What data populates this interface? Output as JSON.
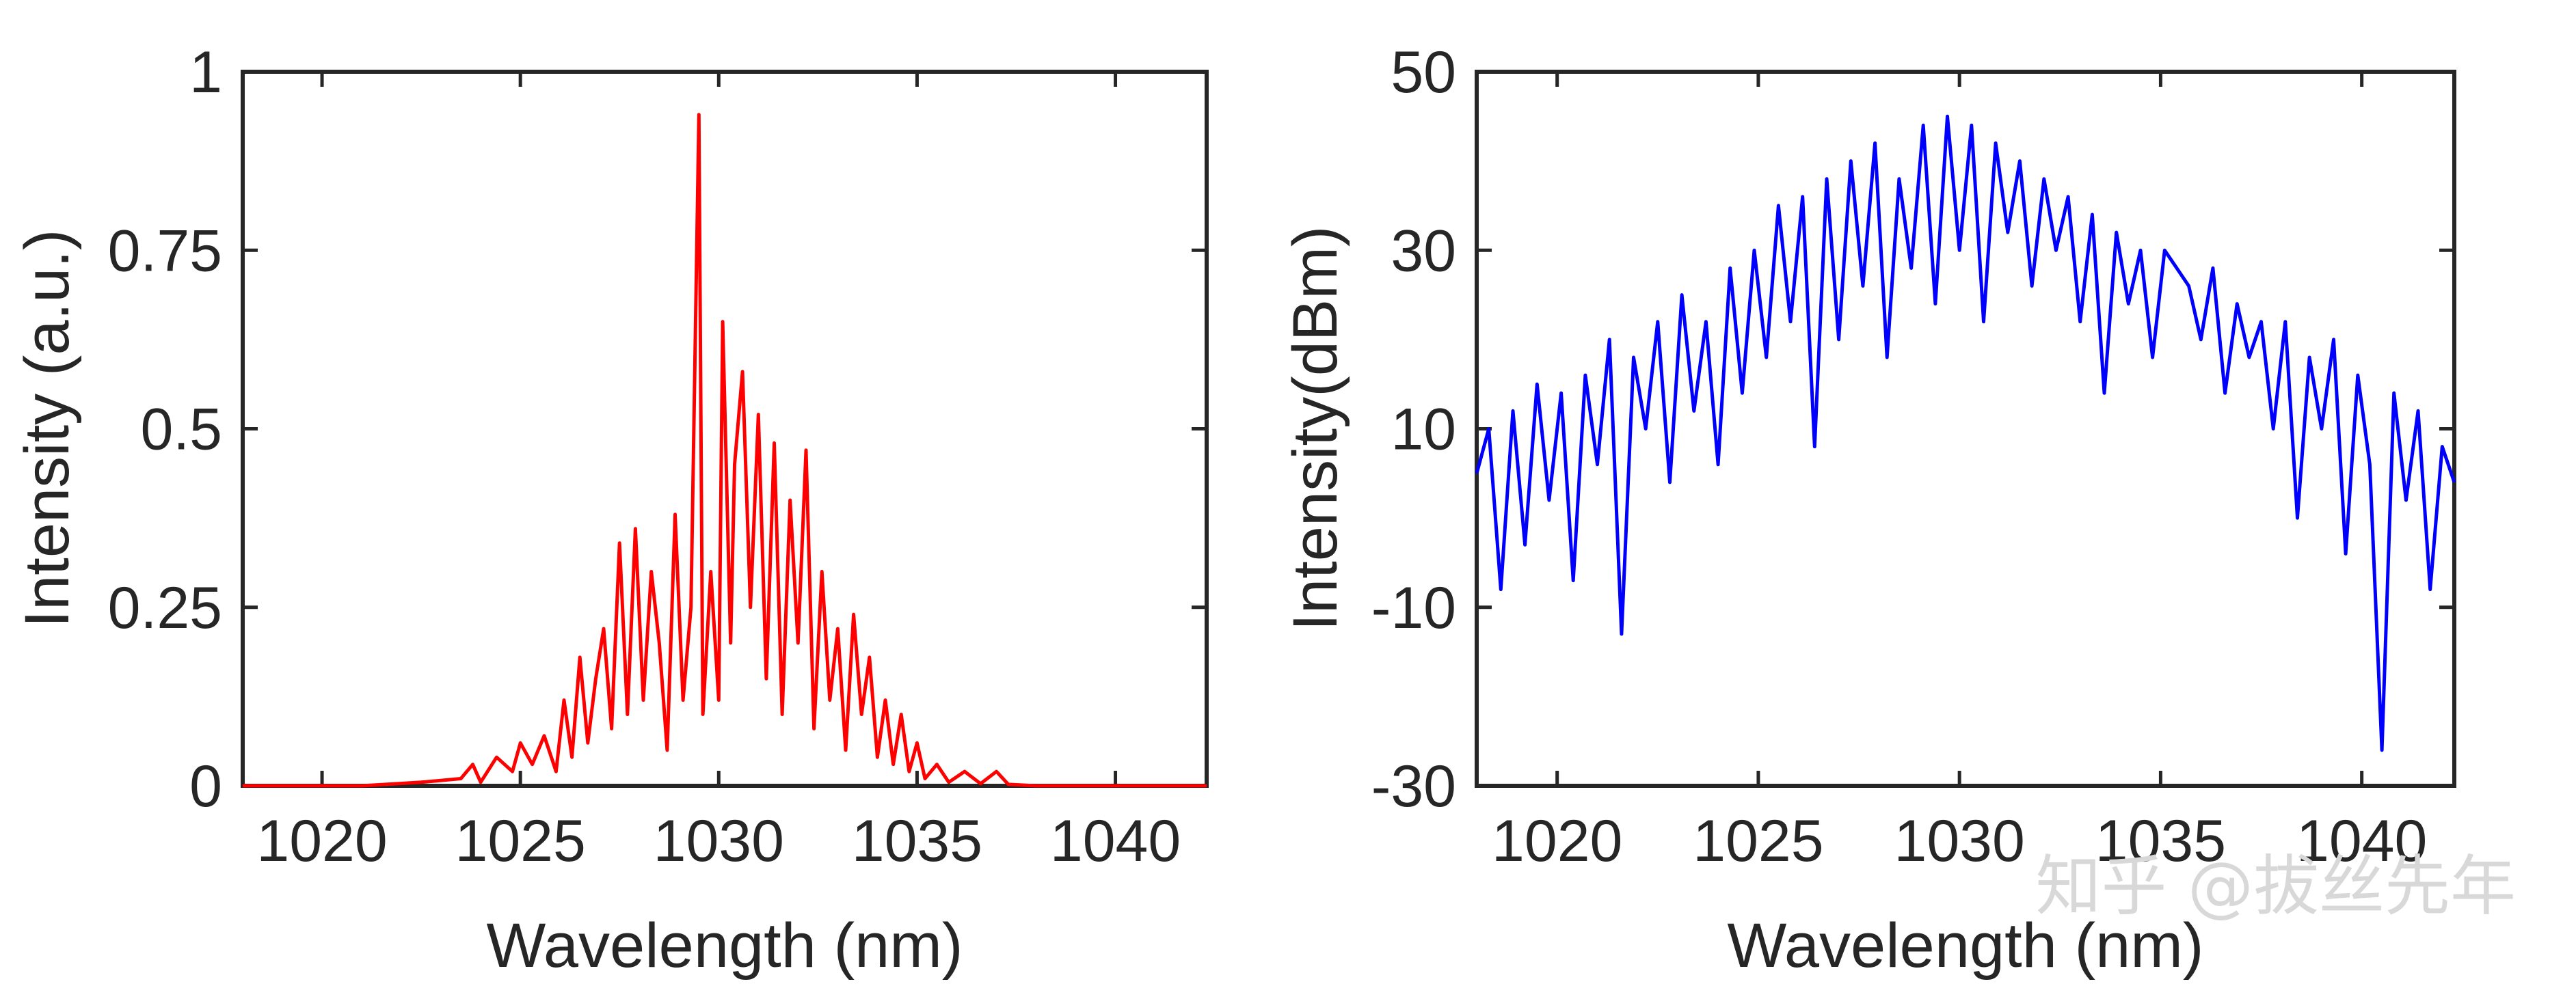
{
  "chart_data": [
    {
      "type": "line",
      "name": "left-spectrum",
      "xlabel": "Wavelength (nm)",
      "ylabel": "Intensity (a.u.)",
      "xlim": [
        1018,
        1042.3
      ],
      "ylim": [
        0,
        1
      ],
      "xticks": [
        1020,
        1025,
        1030,
        1035,
        1040
      ],
      "xtick_labels": [
        "1020",
        "1025",
        "1030",
        "1035",
        "1040"
      ],
      "yticks": [
        0,
        0.25,
        0.5,
        0.75,
        1
      ],
      "ytick_labels": [
        "0",
        "0.25",
        "0.5",
        "0.75",
        "1"
      ],
      "grid": false,
      "color": "#ff0000",
      "series": [
        {
          "name": "Intensity",
          "x": [
            1018.0,
            1021.0,
            1022.5,
            1023.5,
            1023.8,
            1024.0,
            1024.4,
            1024.8,
            1025.0,
            1025.3,
            1025.6,
            1025.9,
            1026.1,
            1026.3,
            1026.5,
            1026.7,
            1026.9,
            1027.1,
            1027.3,
            1027.5,
            1027.7,
            1027.9,
            1028.1,
            1028.3,
            1028.5,
            1028.7,
            1028.9,
            1029.1,
            1029.3,
            1029.5,
            1029.6,
            1029.8,
            1030.0,
            1030.1,
            1030.3,
            1030.4,
            1030.6,
            1030.8,
            1031.0,
            1031.2,
            1031.4,
            1031.6,
            1031.8,
            1032.0,
            1032.2,
            1032.4,
            1032.6,
            1032.8,
            1033.0,
            1033.2,
            1033.4,
            1033.6,
            1033.8,
            1034.0,
            1034.2,
            1034.4,
            1034.6,
            1034.8,
            1035.0,
            1035.2,
            1035.5,
            1035.8,
            1036.2,
            1036.6,
            1037.0,
            1037.3,
            1038.0,
            1040.0,
            1042.3
          ],
          "values": [
            0.0,
            0.0,
            0.005,
            0.01,
            0.03,
            0.005,
            0.04,
            0.02,
            0.06,
            0.03,
            0.07,
            0.02,
            0.12,
            0.04,
            0.18,
            0.06,
            0.15,
            0.22,
            0.08,
            0.34,
            0.1,
            0.36,
            0.12,
            0.3,
            0.2,
            0.05,
            0.38,
            0.12,
            0.25,
            0.94,
            0.1,
            0.3,
            0.12,
            0.65,
            0.2,
            0.45,
            0.58,
            0.25,
            0.52,
            0.15,
            0.48,
            0.1,
            0.4,
            0.2,
            0.47,
            0.08,
            0.3,
            0.12,
            0.22,
            0.05,
            0.24,
            0.1,
            0.18,
            0.04,
            0.12,
            0.03,
            0.1,
            0.02,
            0.06,
            0.01,
            0.03,
            0.005,
            0.02,
            0.003,
            0.02,
            0.002,
            0.0,
            0.0,
            0.0
          ]
        }
      ]
    },
    {
      "type": "line",
      "name": "right-spectrum",
      "xlabel": "Wavelength (nm)",
      "ylabel": "Intensity(dBm)",
      "xlim": [
        1018,
        1042.3
      ],
      "ylim": [
        -30,
        50
      ],
      "xticks": [
        1020,
        1025,
        1030,
        1035,
        1040
      ],
      "xtick_labels": [
        "1020",
        "1025",
        "1030",
        "1035",
        "1040"
      ],
      "yticks": [
        -30,
        -10,
        10,
        30,
        50
      ],
      "ytick_labels": [
        "-30",
        "-10",
        "10",
        "30",
        "50"
      ],
      "grid": false,
      "color": "#0000ff",
      "series": [
        {
          "name": "Intensity",
          "x": [
            1018.0,
            1018.3,
            1018.6,
            1018.9,
            1019.2,
            1019.5,
            1019.8,
            1020.1,
            1020.4,
            1020.7,
            1021.0,
            1021.3,
            1021.6,
            1021.9,
            1022.2,
            1022.5,
            1022.8,
            1023.1,
            1023.4,
            1023.7,
            1024.0,
            1024.3,
            1024.6,
            1024.9,
            1025.2,
            1025.5,
            1025.8,
            1026.1,
            1026.4,
            1026.7,
            1027.0,
            1027.3,
            1027.6,
            1027.9,
            1028.2,
            1028.5,
            1028.8,
            1029.1,
            1029.4,
            1029.7,
            1030.0,
            1030.3,
            1030.6,
            1030.9,
            1031.2,
            1031.5,
            1031.8,
            1032.1,
            1032.4,
            1032.7,
            1033.0,
            1033.3,
            1033.6,
            1033.9,
            1034.2,
            1034.5,
            1034.8,
            1035.1,
            1035.4,
            1035.7,
            1036.0,
            1036.3,
            1036.6,
            1036.9,
            1037.2,
            1037.5,
            1037.8,
            1038.1,
            1038.4,
            1038.7,
            1039.0,
            1039.3,
            1039.6,
            1039.9,
            1040.2,
            1040.5,
            1040.8,
            1041.1,
            1041.4,
            1041.7,
            1042.0,
            1042.3
          ],
          "values": [
            5,
            10,
            -8,
            12,
            -3,
            15,
            2,
            14,
            -7,
            16,
            6,
            20,
            -13,
            18,
            10,
            22,
            4,
            25,
            12,
            22,
            6,
            28,
            14,
            30,
            18,
            35,
            22,
            36,
            8,
            38,
            20,
            40,
            26,
            42,
            18,
            38,
            28,
            44,
            24,
            45,
            30,
            44,
            22,
            42,
            32,
            40,
            26,
            38,
            30,
            36,
            22,
            34,
            14,
            32,
            24,
            30,
            18,
            30,
            28,
            26,
            20,
            28,
            14,
            24,
            18,
            22,
            10,
            22,
            0,
            18,
            10,
            20,
            -4,
            16,
            6,
            -26,
            14,
            2,
            12,
            -8,
            8,
            4
          ]
        }
      ]
    }
  ],
  "watermark": {
    "text": "知乎 @拔丝先年"
  }
}
